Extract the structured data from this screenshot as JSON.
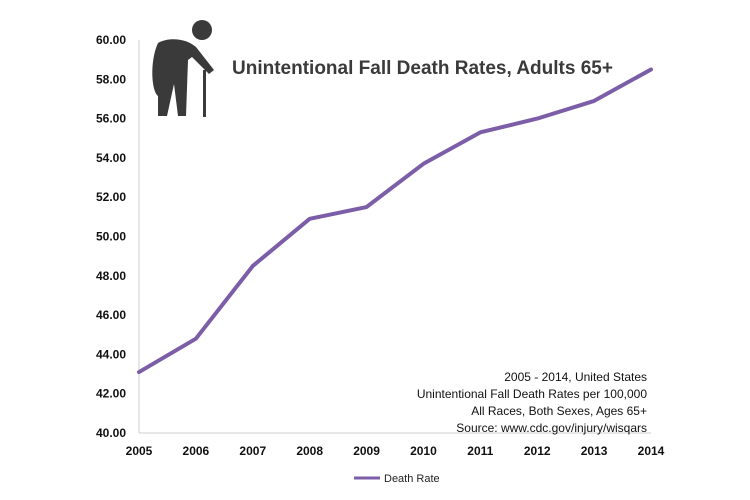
{
  "chart_data": {
    "type": "line",
    "title": "Unintentional Fall Death Rates, Adults 65+",
    "xlabel": "",
    "ylabel": "",
    "x": [
      "2005",
      "2006",
      "2007",
      "2008",
      "2009",
      "2010",
      "2011",
      "2012",
      "2013",
      "2014"
    ],
    "series": [
      {
        "name": "Death Rate",
        "values": [
          43.1,
          44.8,
          48.5,
          50.9,
          51.5,
          53.7,
          55.3,
          56.0,
          56.9,
          58.5
        ],
        "color": "#7b5ea7"
      }
    ],
    "ylim": [
      40,
      60
    ],
    "yticks": [
      "40.00",
      "42.00",
      "44.00",
      "46.00",
      "48.00",
      "50.00",
      "52.00",
      "54.00",
      "56.00",
      "58.00",
      "60.00"
    ],
    "grid": false,
    "legend": "bottom",
    "annotations": [
      "2005 - 2014, United States",
      "Unintentional Fall Death Rates per 100,000",
      "All Races, Both Sexes, Ages 65+",
      "Source: www.cdc.gov/injury/wisqars"
    ],
    "icon": "elderly-person-with-cane-icon"
  }
}
